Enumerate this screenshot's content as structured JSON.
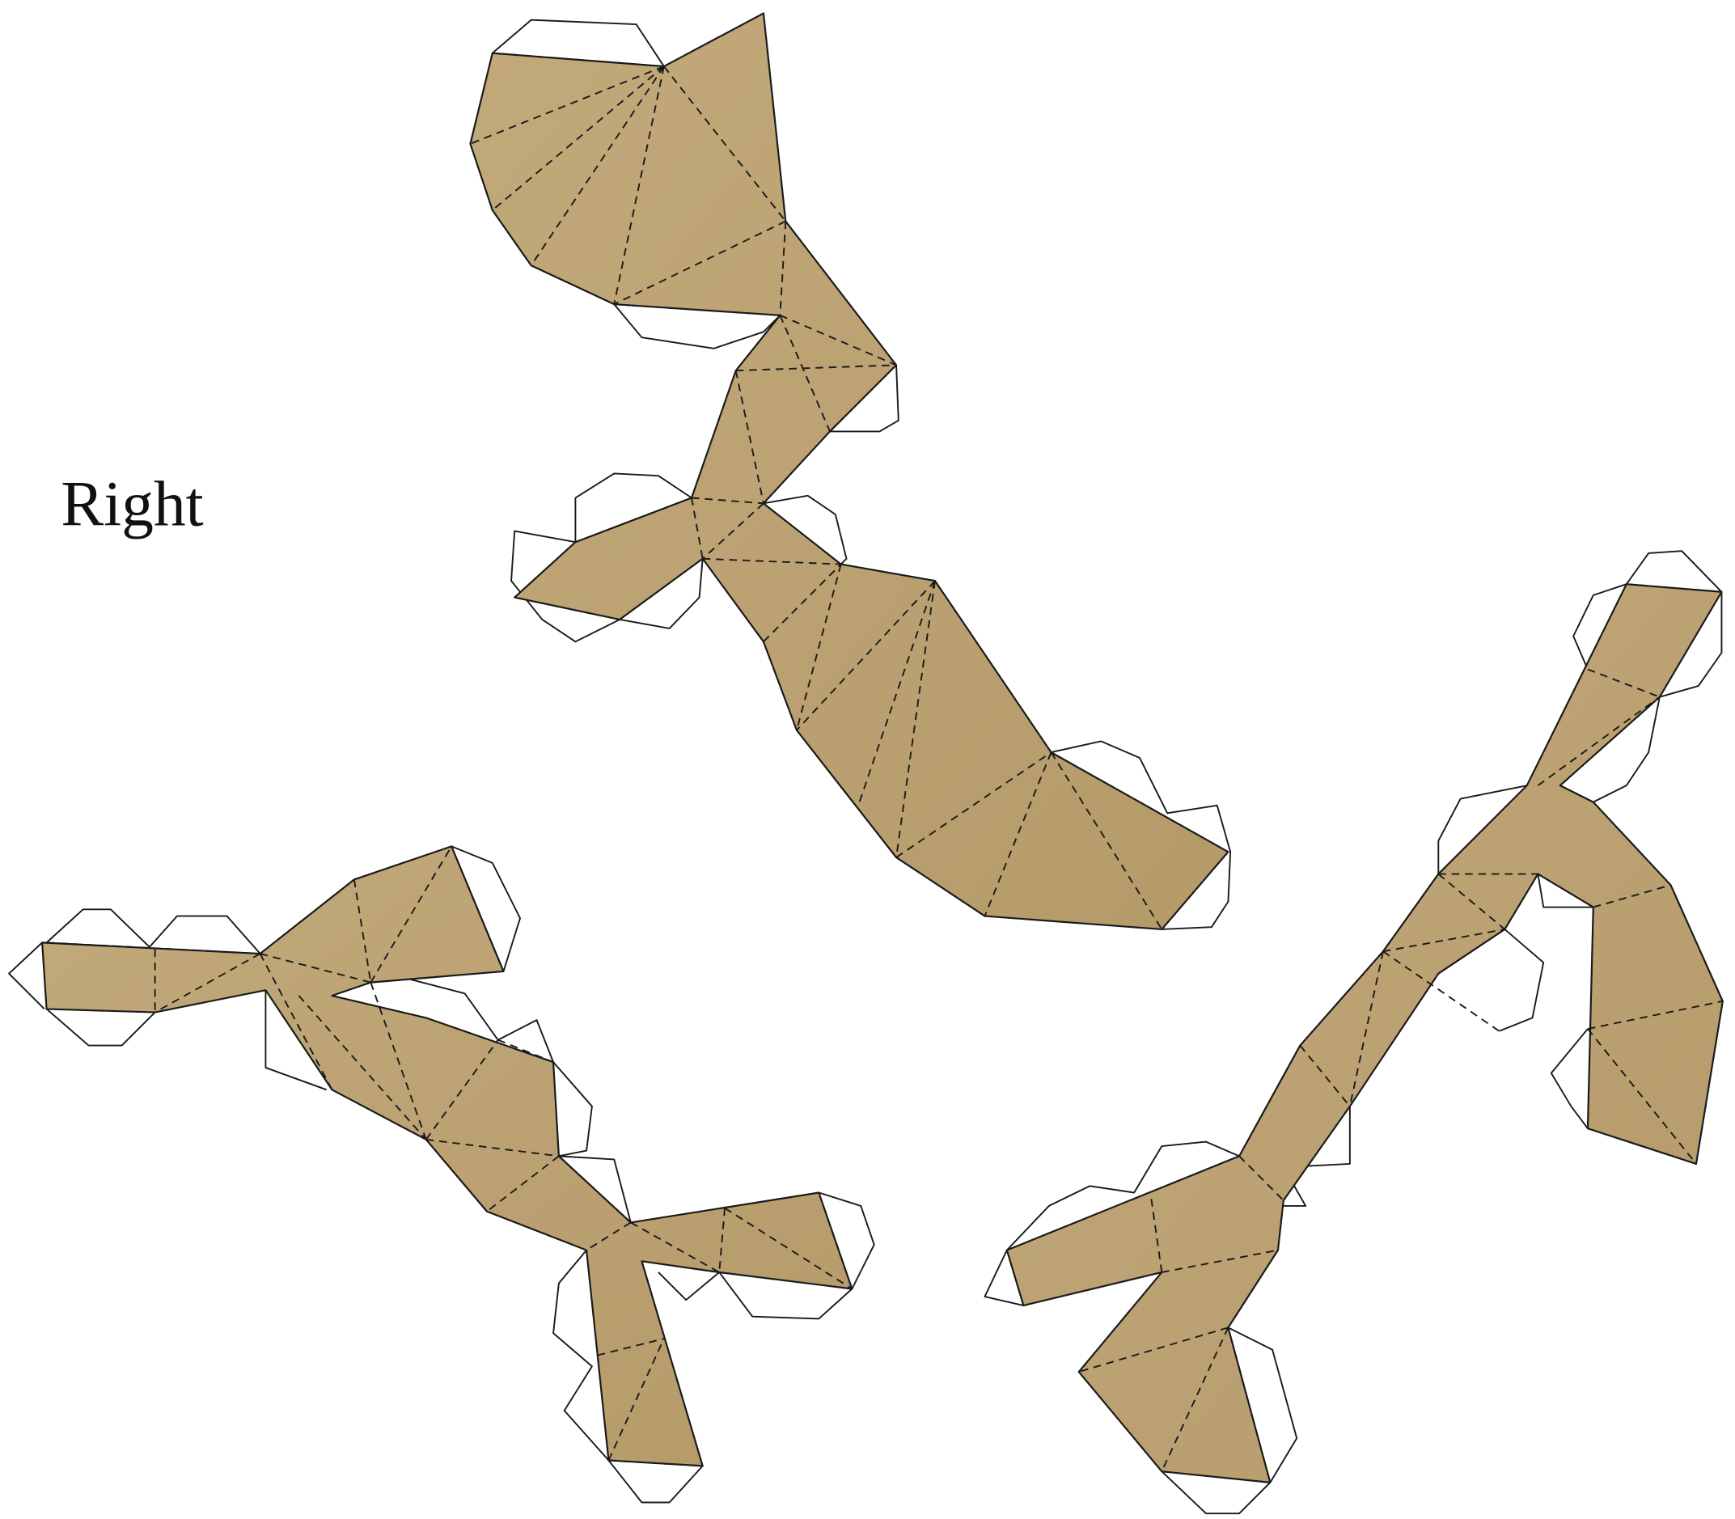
{
  "label": "Right"
}
